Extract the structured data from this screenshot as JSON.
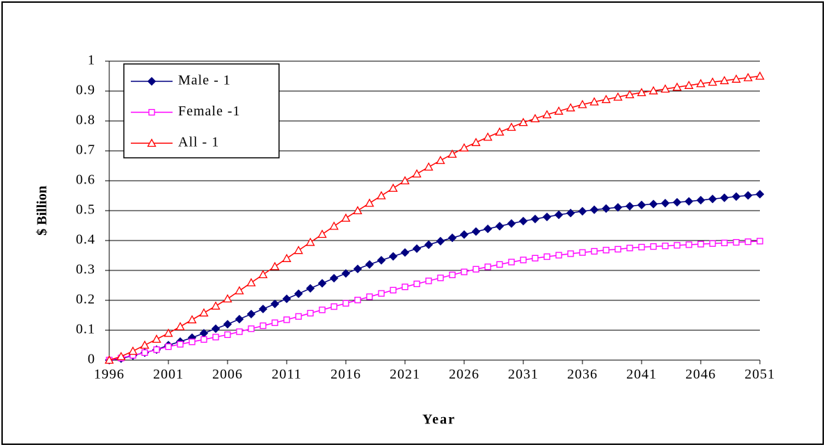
{
  "chart_data": {
    "type": "line",
    "x_label": "Year",
    "y_label": "$ Billion",
    "x": [
      1996,
      1997,
      1998,
      1999,
      2000,
      2001,
      2002,
      2003,
      2004,
      2005,
      2006,
      2007,
      2008,
      2009,
      2010,
      2011,
      2012,
      2013,
      2014,
      2015,
      2016,
      2017,
      2018,
      2019,
      2020,
      2021,
      2022,
      2023,
      2024,
      2025,
      2026,
      2027,
      2028,
      2029,
      2030,
      2031,
      2032,
      2033,
      2034,
      2035,
      2036,
      2037,
      2038,
      2039,
      2040,
      2041,
      2042,
      2043,
      2044,
      2045,
      2046,
      2047,
      2048,
      2049,
      2050,
      2051
    ],
    "xlim": [
      1996,
      2051
    ],
    "xticks": [
      1996,
      2001,
      2006,
      2011,
      2016,
      2021,
      2026,
      2031,
      2036,
      2041,
      2046,
      2051
    ],
    "ylim": [
      0,
      1
    ],
    "yticks": [
      0,
      0.1,
      0.2,
      0.3,
      0.4,
      0.5,
      0.6,
      0.7,
      0.8,
      0.9,
      1
    ],
    "grid": true,
    "legend": "upper left",
    "series": [
      {
        "name": "Male - 1",
        "color": "#000080",
        "marker": "diamond",
        "values": [
          0,
          0.005,
          0.015,
          0.025,
          0.035,
          0.05,
          0.062,
          0.075,
          0.09,
          0.105,
          0.12,
          0.137,
          0.154,
          0.171,
          0.188,
          0.205,
          0.222,
          0.24,
          0.257,
          0.274,
          0.29,
          0.305,
          0.32,
          0.334,
          0.347,
          0.36,
          0.373,
          0.386,
          0.398,
          0.409,
          0.42,
          0.43,
          0.439,
          0.448,
          0.457,
          0.465,
          0.472,
          0.479,
          0.486,
          0.492,
          0.498,
          0.503,
          0.507,
          0.511,
          0.515,
          0.519,
          0.522,
          0.525,
          0.528,
          0.531,
          0.535,
          0.539,
          0.543,
          0.547,
          0.551,
          0.555
        ]
      },
      {
        "name": "Female -1",
        "color": "#ff00ff",
        "marker": "square",
        "values": [
          0,
          0.007,
          0.016,
          0.025,
          0.035,
          0.045,
          0.053,
          0.061,
          0.069,
          0.077,
          0.085,
          0.095,
          0.105,
          0.115,
          0.125,
          0.135,
          0.146,
          0.157,
          0.168,
          0.179,
          0.19,
          0.201,
          0.212,
          0.223,
          0.234,
          0.245,
          0.255,
          0.265,
          0.275,
          0.285,
          0.295,
          0.304,
          0.312,
          0.32,
          0.328,
          0.335,
          0.341,
          0.346,
          0.351,
          0.356,
          0.36,
          0.364,
          0.368,
          0.371,
          0.375,
          0.378,
          0.38,
          0.382,
          0.384,
          0.386,
          0.388,
          0.39,
          0.392,
          0.394,
          0.396,
          0.398
        ]
      },
      {
        "name": "All - 1",
        "color": "#ff0000",
        "marker": "triangle",
        "values": [
          0,
          0.012,
          0.03,
          0.05,
          0.07,
          0.09,
          0.112,
          0.135,
          0.158,
          0.181,
          0.205,
          0.232,
          0.259,
          0.286,
          0.313,
          0.34,
          0.367,
          0.394,
          0.421,
          0.448,
          0.475,
          0.5,
          0.525,
          0.55,
          0.575,
          0.6,
          0.623,
          0.646,
          0.668,
          0.689,
          0.71,
          0.728,
          0.746,
          0.763,
          0.779,
          0.795,
          0.808,
          0.821,
          0.833,
          0.844,
          0.855,
          0.864,
          0.872,
          0.88,
          0.888,
          0.895,
          0.901,
          0.907,
          0.913,
          0.919,
          0.925,
          0.93,
          0.935,
          0.94,
          0.945,
          0.95
        ]
      }
    ]
  }
}
